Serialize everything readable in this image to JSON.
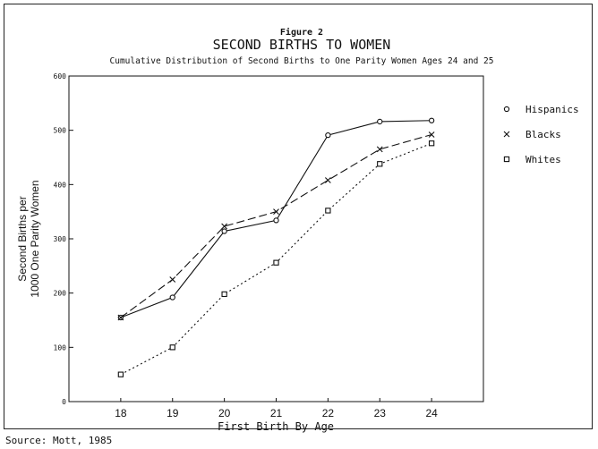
{
  "figure_label": "Figure 2",
  "source": "Source:  Mott, 1985",
  "chart_data": {
    "type": "line",
    "title": "SECOND BIRTHS TO WOMEN",
    "subtitle": "Cumulative Distribution of Second Births to One Parity Women Ages 24 and 25",
    "xlabel": "First Birth By Age",
    "ylabel": [
      "Second Births per",
      "1000 One Parity Women"
    ],
    "x": [
      18,
      19,
      20,
      21,
      22,
      23,
      24
    ],
    "x_tick_labels": [
      "18",
      "19",
      "20",
      "21",
      "22",
      "23",
      "24"
    ],
    "xlim": [
      17,
      25
    ],
    "ylim": [
      0,
      600
    ],
    "y_ticks": [
      0,
      100,
      200,
      300,
      400,
      500,
      600
    ],
    "grid": false,
    "legend_position": "right",
    "series": [
      {
        "name": "Hispanics",
        "marker": "circle",
        "line": "solid",
        "values": [
          155,
          192,
          314,
          334,
          491,
          516,
          518
        ]
      },
      {
        "name": "Blacks",
        "marker": "x",
        "line": "dashed",
        "values": [
          155,
          225,
          323,
          350,
          408,
          465,
          492
        ]
      },
      {
        "name": "Whites",
        "marker": "square",
        "line": "dotted",
        "values": [
          50,
          100,
          198,
          256,
          352,
          438,
          476
        ]
      }
    ]
  }
}
